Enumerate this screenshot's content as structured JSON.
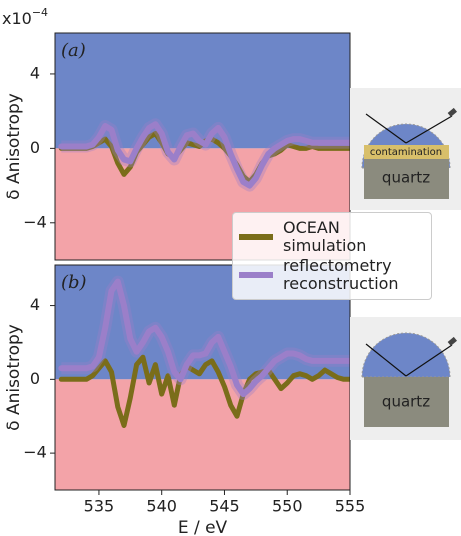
{
  "chart_data": [
    {
      "type": "line",
      "panel_label": "(a)",
      "offset_label": "x10",
      "offset_exponent": "−4",
      "ylabel": "δ Anisotropy",
      "above_color": "#6d86c8",
      "below_color": "#f3a3a8",
      "xlim": [
        531.5,
        555
      ],
      "ylim": [
        -6,
        6.2
      ],
      "yticks": [
        4,
        0,
        {
          "value": -4,
          "label": "−4"
        }
      ],
      "x": [
        532,
        532.5,
        533,
        533.5,
        534,
        534.5,
        535,
        535.5,
        536,
        536.5,
        537,
        537.5,
        538,
        538.5,
        539,
        539.5,
        540,
        540.5,
        541,
        541.5,
        542,
        542.5,
        543,
        543.5,
        544,
        544.5,
        545,
        545.5,
        546,
        546.5,
        547,
        547.5,
        548,
        548.5,
        549,
        549.5,
        550,
        550.5,
        551,
        551.5,
        552,
        552.5,
        553,
        553.5,
        554,
        554.5,
        555
      ],
      "series": [
        {
          "name": "OCEAN simulation",
          "color": "#7a6d1a",
          "values": [
            0,
            0,
            0,
            0,
            0,
            0.1,
            0.3,
            0.5,
            0.1,
            -0.8,
            -1.4,
            -1,
            -0.2,
            0.2,
            0.6,
            0.8,
            0.3,
            -0.3,
            -0.5,
            -0.1,
            0.3,
            0.2,
            0.1,
            0.4,
            0.5,
            0.3,
            0,
            -0.4,
            -0.9,
            -1.5,
            -1.8,
            -1.4,
            -0.8,
            -0.4,
            -0.3,
            -0.1,
            0.2,
            0.1,
            0,
            0,
            0.1,
            0,
            0,
            0,
            0,
            0,
            0
          ]
        },
        {
          "name": "reflectometry reconstruction",
          "color": "#9b7fc9",
          "values": [
            0.1,
            0.1,
            0.1,
            0.1,
            0.1,
            0.2,
            0.6,
            1.2,
            1,
            -0.1,
            -0.6,
            -0.7,
            0,
            0.6,
            1.1,
            1.3,
            0.8,
            -0.2,
            -0.6,
            0.1,
            0.7,
            0.8,
            0.4,
            0.2,
            0.8,
            1.1,
            0.6,
            -0.3,
            -1.1,
            -1.8,
            -2,
            -1.6,
            -0.9,
            -0.3,
            0,
            0.2,
            0.4,
            0.5,
            0.5,
            0.4,
            0.3,
            0.3,
            0.3,
            0.3,
            0.3,
            0.3,
            0.3
          ]
        }
      ]
    },
    {
      "type": "line",
      "panel_label": "(b)",
      "ylabel": "δ Anisotropy",
      "xlabel": "E / eV",
      "above_color": "#6d86c8",
      "below_color": "#f3a3a8",
      "xlim": [
        531.5,
        555
      ],
      "ylim": [
        -6,
        6.2
      ],
      "xticks": [
        535,
        540,
        545,
        550,
        555
      ],
      "yticks": [
        4,
        0,
        {
          "value": -4,
          "label": "−4"
        }
      ],
      "x": [
        532,
        532.5,
        533,
        533.5,
        534,
        534.5,
        535,
        535.5,
        536,
        536.5,
        537,
        537.5,
        538,
        538.5,
        539,
        539.5,
        540,
        540.5,
        541,
        541.5,
        542,
        542.5,
        543,
        543.5,
        544,
        544.5,
        545,
        545.5,
        546,
        546.5,
        547,
        547.5,
        548,
        548.5,
        549,
        549.5,
        550,
        550.5,
        551,
        551.5,
        552,
        552.5,
        553,
        553.5,
        554,
        554.5,
        555
      ],
      "series": [
        {
          "color": "#7a6d1a",
          "values": [
            0,
            0,
            0,
            0,
            0,
            0.2,
            0.6,
            1,
            0.4,
            -1.5,
            -2.5,
            -1,
            0.8,
            1.2,
            -0.2,
            0.8,
            -0.8,
            0.2,
            -1.4,
            0.2,
            0.7,
            0.5,
            0.3,
            0.8,
            1,
            0.4,
            -0.4,
            -1.4,
            -2,
            -0.8,
            0,
            0.3,
            0.4,
            0.5,
            0,
            -0.5,
            -0.2,
            0.2,
            0.3,
            0.2,
            0,
            0.2,
            0.5,
            0.3,
            0.1,
            0,
            0
          ]
        },
        {
          "color": "#9b7fc9",
          "values": [
            0.6,
            0.6,
            0.6,
            0.6,
            0.6,
            0.7,
            1.2,
            2.8,
            4.8,
            5.3,
            4,
            2.2,
            1.5,
            2,
            2.6,
            2.8,
            2.3,
            1.5,
            0.4,
            0,
            0.8,
            1.3,
            1.3,
            1.4,
            2,
            2.3,
            1.5,
            0.7,
            -0.3,
            -0.8,
            -0.5,
            -0.1,
            0.2,
            0.6,
            1,
            1.2,
            1.4,
            1.4,
            1.3,
            1.1,
            1,
            1,
            1,
            1,
            1,
            1,
            1
          ]
        }
      ]
    }
  ],
  "insets": [
    {
      "layer": "contamination",
      "substrate": "quartz"
    },
    {
      "substrate": "quartz"
    }
  ]
}
